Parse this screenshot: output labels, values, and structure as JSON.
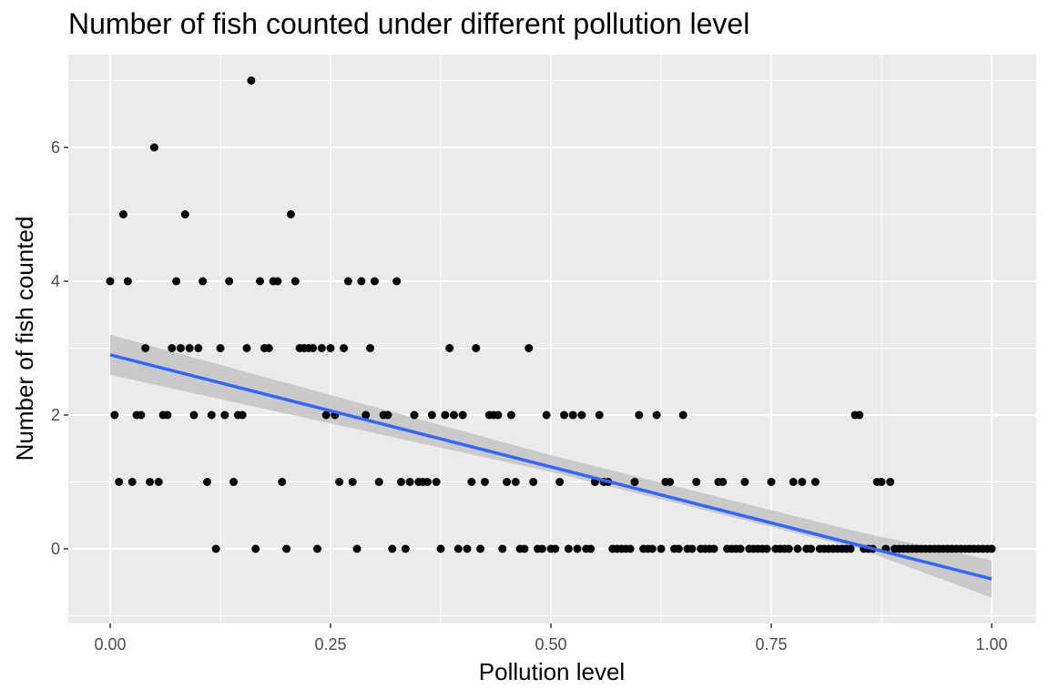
{
  "chart_data": {
    "type": "scatter",
    "title": "Number of fish counted under different pollution level",
    "xlabel": "Pollution level",
    "ylabel": "Number of fish counted",
    "xlim": [
      -0.05,
      1.05
    ],
    "ylim": [
      -1.1,
      7.4
    ],
    "x_ticks": [
      0.0,
      0.25,
      0.5,
      0.75,
      1.0
    ],
    "x_tick_labels": [
      "0.00",
      "0.25",
      "0.50",
      "0.75",
      "1.00"
    ],
    "y_ticks": [
      0,
      2,
      4,
      6
    ],
    "y_tick_labels": [
      "0",
      "2",
      "4",
      "6"
    ],
    "grid": true,
    "colors": {
      "panel": "#ebebeb",
      "grid": "#ffffff",
      "points": "#000000",
      "fit_line": "#3366ff",
      "ribbon": "#c4c4c4"
    },
    "series": [
      {
        "type": "scatter",
        "points": [
          [
            0.0,
            4
          ],
          [
            0.005,
            2
          ],
          [
            0.01,
            1
          ],
          [
            0.015,
            5
          ],
          [
            0.02,
            4
          ],
          [
            0.025,
            1
          ],
          [
            0.03,
            2
          ],
          [
            0.035,
            2
          ],
          [
            0.04,
            3
          ],
          [
            0.045,
            1
          ],
          [
            0.05,
            6
          ],
          [
            0.055,
            1
          ],
          [
            0.06,
            2
          ],
          [
            0.065,
            2
          ],
          [
            0.07,
            3
          ],
          [
            0.075,
            4
          ],
          [
            0.08,
            3
          ],
          [
            0.085,
            5
          ],
          [
            0.09,
            3
          ],
          [
            0.095,
            2
          ],
          [
            0.1,
            3
          ],
          [
            0.105,
            4
          ],
          [
            0.11,
            1
          ],
          [
            0.115,
            2
          ],
          [
            0.12,
            0
          ],
          [
            0.125,
            3
          ],
          [
            0.13,
            2
          ],
          [
            0.135,
            4
          ],
          [
            0.14,
            1
          ],
          [
            0.145,
            2
          ],
          [
            0.15,
            2
          ],
          [
            0.155,
            3
          ],
          [
            0.16,
            7
          ],
          [
            0.165,
            0
          ],
          [
            0.17,
            4
          ],
          [
            0.175,
            3
          ],
          [
            0.18,
            3
          ],
          [
            0.185,
            4
          ],
          [
            0.19,
            4
          ],
          [
            0.195,
            1
          ],
          [
            0.2,
            0
          ],
          [
            0.205,
            5
          ],
          [
            0.21,
            4
          ],
          [
            0.215,
            3
          ],
          [
            0.22,
            3
          ],
          [
            0.225,
            3
          ],
          [
            0.23,
            3
          ],
          [
            0.235,
            0
          ],
          [
            0.24,
            3
          ],
          [
            0.245,
            2
          ],
          [
            0.25,
            3
          ],
          [
            0.255,
            2
          ],
          [
            0.26,
            1
          ],
          [
            0.265,
            3
          ],
          [
            0.27,
            4
          ],
          [
            0.275,
            1
          ],
          [
            0.28,
            0
          ],
          [
            0.285,
            4
          ],
          [
            0.29,
            2
          ],
          [
            0.295,
            3
          ],
          [
            0.3,
            4
          ],
          [
            0.305,
            1
          ],
          [
            0.31,
            2
          ],
          [
            0.315,
            2
          ],
          [
            0.32,
            0
          ],
          [
            0.325,
            4
          ],
          [
            0.33,
            1
          ],
          [
            0.335,
            0
          ],
          [
            0.34,
            1
          ],
          [
            0.345,
            2
          ],
          [
            0.35,
            1
          ],
          [
            0.355,
            1
          ],
          [
            0.36,
            1
          ],
          [
            0.365,
            2
          ],
          [
            0.37,
            1
          ],
          [
            0.375,
            0
          ],
          [
            0.38,
            2
          ],
          [
            0.385,
            3
          ],
          [
            0.39,
            2
          ],
          [
            0.395,
            0
          ],
          [
            0.4,
            2
          ],
          [
            0.405,
            0
          ],
          [
            0.41,
            1
          ],
          [
            0.415,
            3
          ],
          [
            0.42,
            0
          ],
          [
            0.425,
            1
          ],
          [
            0.43,
            2
          ],
          [
            0.435,
            2
          ],
          [
            0.44,
            2
          ],
          [
            0.445,
            0
          ],
          [
            0.45,
            1
          ],
          [
            0.455,
            2
          ],
          [
            0.46,
            1
          ],
          [
            0.465,
            0
          ],
          [
            0.47,
            0
          ],
          [
            0.475,
            3
          ],
          [
            0.48,
            1
          ],
          [
            0.485,
            0
          ],
          [
            0.49,
            0
          ],
          [
            0.495,
            2
          ],
          [
            0.5,
            0
          ],
          [
            0.505,
            0
          ],
          [
            0.51,
            1
          ],
          [
            0.515,
            2
          ],
          [
            0.52,
            0
          ],
          [
            0.525,
            2
          ],
          [
            0.53,
            0
          ],
          [
            0.535,
            2
          ],
          [
            0.54,
            0
          ],
          [
            0.545,
            0
          ],
          [
            0.55,
            1
          ],
          [
            0.555,
            2
          ],
          [
            0.56,
            1
          ],
          [
            0.565,
            1
          ],
          [
            0.57,
            0
          ],
          [
            0.575,
            0
          ],
          [
            0.58,
            0
          ],
          [
            0.585,
            0
          ],
          [
            0.59,
            0
          ],
          [
            0.595,
            1
          ],
          [
            0.6,
            2
          ],
          [
            0.605,
            0
          ],
          [
            0.61,
            0
          ],
          [
            0.615,
            0
          ],
          [
            0.62,
            2
          ],
          [
            0.625,
            0
          ],
          [
            0.63,
            1
          ],
          [
            0.635,
            1
          ],
          [
            0.64,
            0
          ],
          [
            0.645,
            0
          ],
          [
            0.65,
            2
          ],
          [
            0.655,
            0
          ],
          [
            0.66,
            0
          ],
          [
            0.665,
            1
          ],
          [
            0.67,
            0
          ],
          [
            0.675,
            0
          ],
          [
            0.68,
            0
          ],
          [
            0.685,
            0
          ],
          [
            0.69,
            1
          ],
          [
            0.695,
            1
          ],
          [
            0.7,
            0
          ],
          [
            0.705,
            0
          ],
          [
            0.71,
            0
          ],
          [
            0.715,
            0
          ],
          [
            0.72,
            1
          ],
          [
            0.725,
            0
          ],
          [
            0.73,
            0
          ],
          [
            0.735,
            0
          ],
          [
            0.74,
            0
          ],
          [
            0.745,
            0
          ],
          [
            0.75,
            1
          ],
          [
            0.755,
            0
          ],
          [
            0.76,
            0
          ],
          [
            0.765,
            0
          ],
          [
            0.77,
            0
          ],
          [
            0.775,
            1
          ],
          [
            0.78,
            0
          ],
          [
            0.785,
            1
          ],
          [
            0.79,
            0
          ],
          [
            0.795,
            0
          ],
          [
            0.8,
            1
          ],
          [
            0.805,
            0
          ],
          [
            0.81,
            0
          ],
          [
            0.815,
            0
          ],
          [
            0.82,
            0
          ],
          [
            0.825,
            0
          ],
          [
            0.83,
            0
          ],
          [
            0.835,
            0
          ],
          [
            0.84,
            0
          ],
          [
            0.845,
            2
          ],
          [
            0.85,
            2
          ],
          [
            0.855,
            0
          ],
          [
            0.86,
            0
          ],
          [
            0.865,
            0
          ],
          [
            0.87,
            1
          ],
          [
            0.875,
            1
          ],
          [
            0.88,
            0
          ],
          [
            0.885,
            1
          ],
          [
            0.89,
            0
          ],
          [
            0.895,
            0
          ],
          [
            0.9,
            0
          ],
          [
            0.905,
            0
          ],
          [
            0.91,
            0
          ],
          [
            0.915,
            0
          ],
          [
            0.92,
            0
          ],
          [
            0.925,
            0
          ],
          [
            0.93,
            0
          ],
          [
            0.935,
            0
          ],
          [
            0.94,
            0
          ],
          [
            0.945,
            0
          ],
          [
            0.95,
            0
          ],
          [
            0.955,
            0
          ],
          [
            0.96,
            0
          ],
          [
            0.965,
            0
          ],
          [
            0.97,
            0
          ],
          [
            0.975,
            0
          ],
          [
            0.98,
            0
          ],
          [
            0.985,
            0
          ],
          [
            0.99,
            0
          ],
          [
            0.995,
            0
          ],
          [
            1.0,
            0
          ]
        ]
      },
      {
        "type": "line",
        "points": [
          [
            0.0,
            2.9
          ],
          [
            1.0,
            -0.45
          ]
        ],
        "confidence_band": {
          "x": [
            0.0,
            0.5,
            0.85,
            1.0
          ],
          "lower": [
            2.6,
            1.15,
            0.0,
            -0.73
          ],
          "upper": [
            3.2,
            1.4,
            0.25,
            -0.17
          ]
        }
      }
    ]
  }
}
